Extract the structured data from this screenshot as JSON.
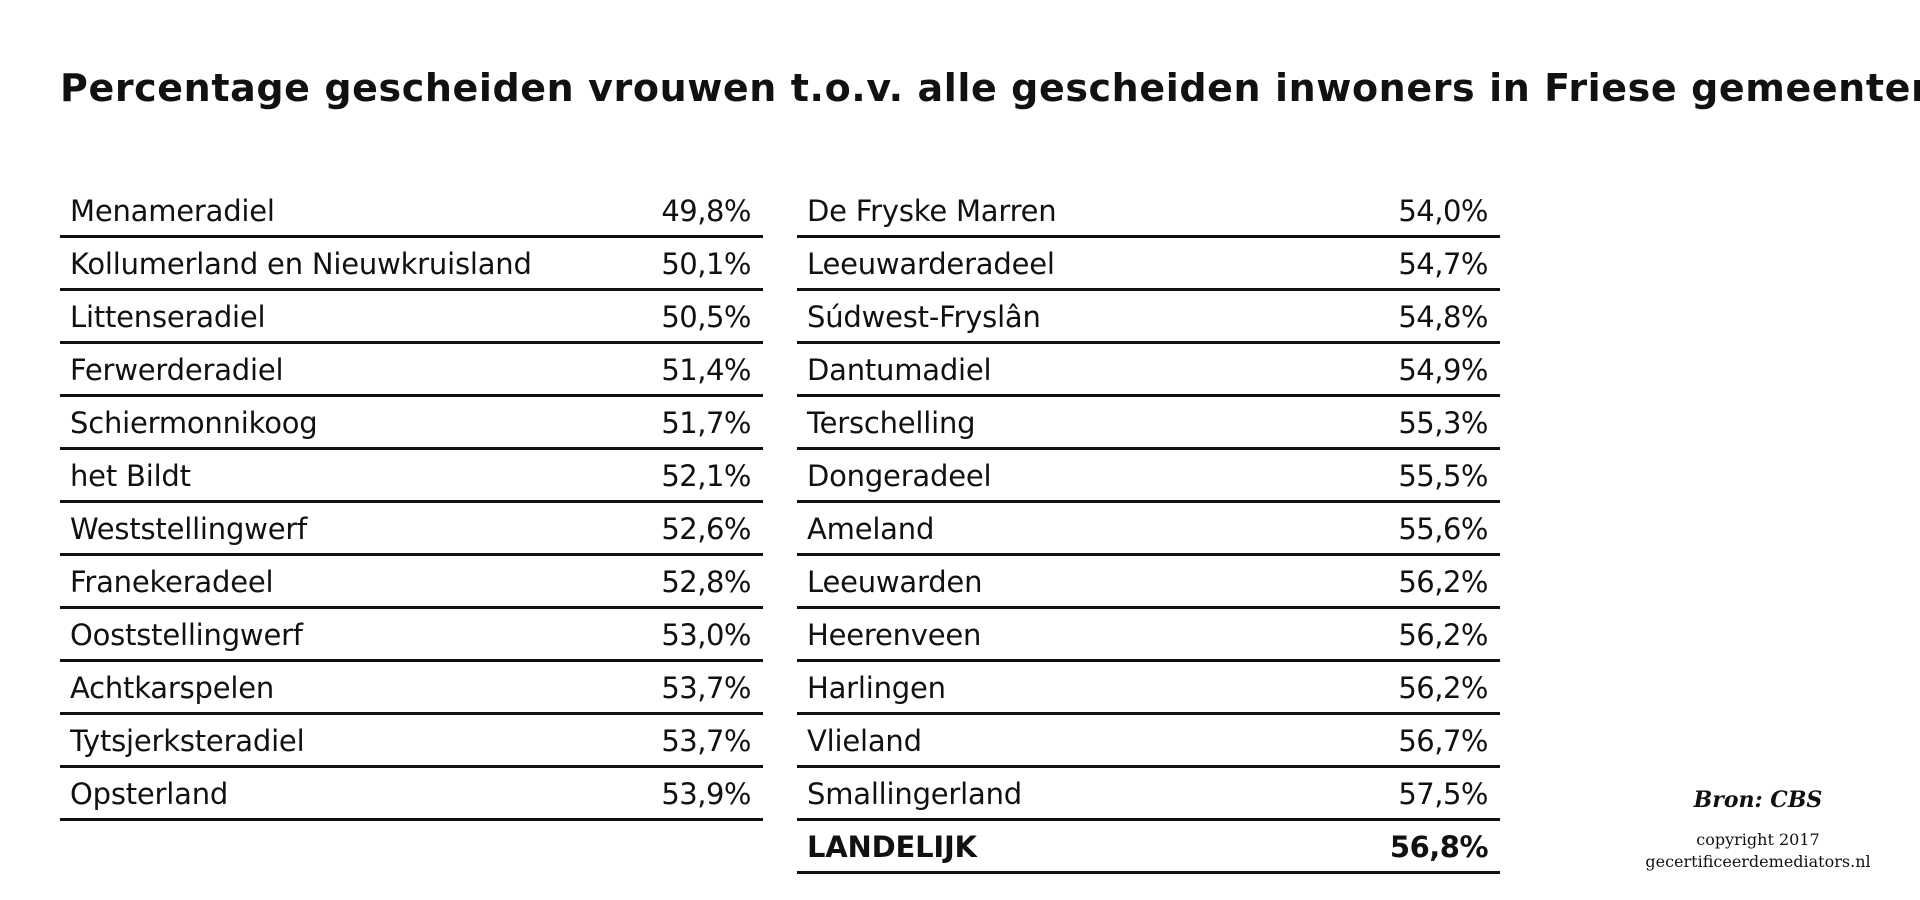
{
  "chart_data": {
    "type": "table",
    "title": "Percentage gescheiden vrouwen t.o.v. alle gescheiden inwoners in Friese gemeenten",
    "columns": [
      {
        "rows": [
          {
            "name": "Menameradiel",
            "value": "49,8%"
          },
          {
            "name": "Kollumerland en Nieuwkruisland",
            "value": "50,1%"
          },
          {
            "name": "Littenseradiel",
            "value": "50,5%"
          },
          {
            "name": "Ferwerderadiel",
            "value": "51,4%"
          },
          {
            "name": "Schiermonnikoog",
            "value": "51,7%"
          },
          {
            "name": "het Bildt",
            "value": "52,1%"
          },
          {
            "name": "Weststellingwerf",
            "value": "52,6%"
          },
          {
            "name": "Franekeradeel",
            "value": "52,8%"
          },
          {
            "name": "Ooststellingwerf",
            "value": "53,0%"
          },
          {
            "name": "Achtkarspelen",
            "value": "53,7%"
          },
          {
            "name": "Tytsjerksteradiel",
            "value": "53,7%"
          },
          {
            "name": "Opsterland",
            "value": "53,9%"
          }
        ]
      },
      {
        "rows": [
          {
            "name": "De Fryske Marren",
            "value": "54,0%"
          },
          {
            "name": "Leeuwarderadeel",
            "value": "54,7%"
          },
          {
            "name": "Súdwest-Fryslân",
            "value": "54,8%"
          },
          {
            "name": "Dantumadiel",
            "value": "54,9%"
          },
          {
            "name": "Terschelling",
            "value": "55,3%"
          },
          {
            "name": "Dongeradeel",
            "value": "55,5%"
          },
          {
            "name": "Ameland",
            "value": "55,6%"
          },
          {
            "name": "Leeuwarden",
            "value": "56,2%"
          },
          {
            "name": "Heerenveen",
            "value": "56,2%"
          },
          {
            "name": "Harlingen",
            "value": "56,2%"
          },
          {
            "name": "Vlieland",
            "value": "56,7%"
          },
          {
            "name": "Smallingerland",
            "value": "57,5%"
          },
          {
            "name": "LANDELIJK",
            "value": "56,8%",
            "bold": true
          }
        ]
      }
    ]
  },
  "source": {
    "label": "Bron: CBS",
    "copyright": "copyright 2017",
    "website": "gecertificeerdemediators.nl"
  },
  "colors": {
    "text": "#111111",
    "rule": "#111111",
    "background": "#ffffff"
  }
}
